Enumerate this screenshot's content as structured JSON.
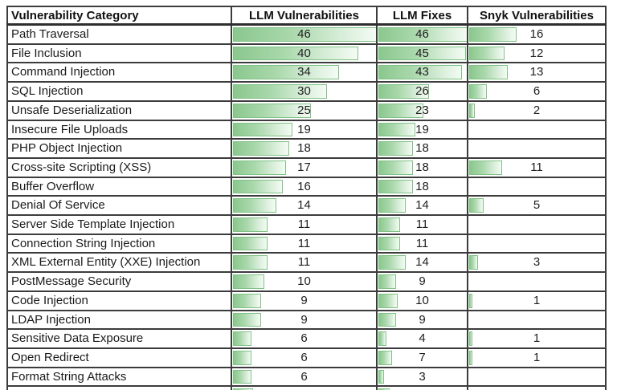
{
  "chart_data": {
    "type": "table",
    "title": "",
    "columns": [
      "Vulnerability Category",
      "LLM Vulnerabilities",
      "LLM Fixes",
      "Snyk Vulnerabilities"
    ],
    "bar_scale_max": 46,
    "rows": [
      {
        "category": "Path Traversal",
        "values": [
          46,
          46,
          16
        ]
      },
      {
        "category": "File Inclusion",
        "values": [
          40,
          45,
          12
        ]
      },
      {
        "category": "Command Injection",
        "values": [
          34,
          43,
          13
        ]
      },
      {
        "category": "SQL Injection",
        "values": [
          30,
          26,
          6
        ]
      },
      {
        "category": "Unsafe Deserialization",
        "values": [
          25,
          23,
          2
        ]
      },
      {
        "category": "Insecure File Uploads",
        "values": [
          19,
          19,
          null
        ]
      },
      {
        "category": "PHP Object Injection",
        "values": [
          18,
          18,
          null
        ]
      },
      {
        "category": "Cross-site Scripting (XSS)",
        "values": [
          17,
          18,
          11
        ]
      },
      {
        "category": "Buffer Overflow",
        "values": [
          16,
          18,
          null
        ]
      },
      {
        "category": "Denial Of Service",
        "values": [
          14,
          14,
          5
        ]
      },
      {
        "category": "Server Side Template Injection",
        "values": [
          11,
          11,
          null
        ]
      },
      {
        "category": "Connection String Injection",
        "values": [
          11,
          11,
          null
        ]
      },
      {
        "category": "XML External Entity (XXE) Injection",
        "values": [
          11,
          14,
          3
        ]
      },
      {
        "category": "PostMessage Security",
        "values": [
          10,
          9,
          null
        ]
      },
      {
        "category": "Code Injection",
        "values": [
          9,
          10,
          1
        ]
      },
      {
        "category": "LDAP Injection",
        "values": [
          9,
          9,
          null
        ]
      },
      {
        "category": "Sensitive Data Exposure",
        "values": [
          6,
          4,
          1
        ]
      },
      {
        "category": "Open Redirect",
        "values": [
          6,
          7,
          1
        ]
      },
      {
        "category": "Format String Attacks",
        "values": [
          6,
          3,
          null
        ]
      }
    ],
    "partial_bottom_row": {
      "bar_fractions": [
        0.14,
        0.13,
        0
      ]
    },
    "layout": {
      "grid_on": true,
      "bar_style": "gradient-green",
      "value_alignment": "center"
    }
  },
  "colors": {
    "grid": "#3c3c3c",
    "bar_border": "#80c285",
    "bar_gradient_start": "#8bc78e",
    "bar_gradient_end": "#f4fbf4",
    "text": "#1a1a1a",
    "background": "#ffffff"
  }
}
